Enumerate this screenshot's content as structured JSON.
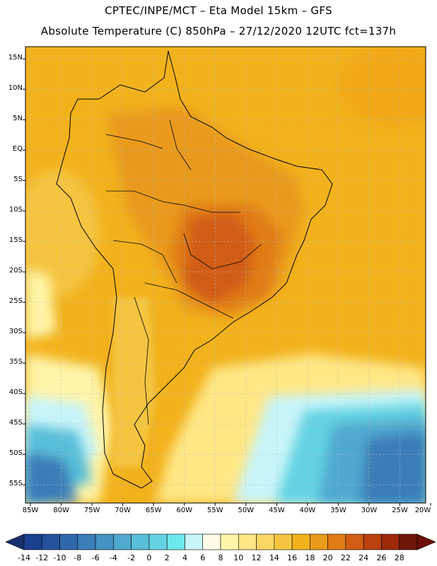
{
  "header": {
    "line1": "CPTEC/INPE/MCT –  Eta Model 15km – GFS",
    "line2": "Absolute Temperature (C) 850hPa – 27/12/2020 12UTC fct=137h"
  },
  "map": {
    "region": "South America",
    "lon_range": [
      -85,
      -20
    ],
    "lat_range": [
      -58,
      17
    ],
    "lat_ticks": [
      "15N",
      "10N",
      "5N",
      "EQ",
      "5S",
      "10S",
      "15S",
      "20S",
      "25S",
      "30S",
      "35S",
      "40S",
      "45S",
      "50S",
      "55S"
    ],
    "lat_values": [
      15,
      10,
      5,
      0,
      -5,
      -10,
      -15,
      -20,
      -25,
      -30,
      -35,
      -40,
      -45,
      -50,
      -55
    ],
    "lon_ticks": [
      "85W",
      "80W",
      "75W",
      "70W",
      "65W",
      "60W",
      "55W",
      "50W",
      "45W",
      "40W",
      "35W",
      "30W",
      "25W",
      "20W"
    ],
    "lon_values": [
      -85,
      -80,
      -75,
      -70,
      -65,
      -60,
      -55,
      -50,
      -45,
      -40,
      -35,
      -30,
      -25,
      -20
    ]
  },
  "colorbar": {
    "labels": [
      "-14",
      "-12",
      "-10",
      "-8",
      "-6",
      "-4",
      "-2",
      "0",
      "2",
      "4",
      "6",
      "8",
      "10",
      "12",
      "14",
      "16",
      "18",
      "20",
      "22",
      "24",
      "26",
      "28"
    ],
    "colors": [
      "#1b3f8f",
      "#25529c",
      "#2f67ab",
      "#3a7db8",
      "#4493c4",
      "#4fa9cf",
      "#59bed9",
      "#63d3e3",
      "#6de8ed",
      "#c8f5fa",
      "#fffbe6",
      "#fff5a8",
      "#ffe785",
      "#fbd763",
      "#f5c540",
      "#f2b21c",
      "#e99a1a",
      "#e07c16",
      "#d15c12",
      "#bb410e",
      "#9c2a0b",
      "#6e1708"
    ],
    "under_color": "#17306f",
    "over_color": "#6e0f05"
  }
}
